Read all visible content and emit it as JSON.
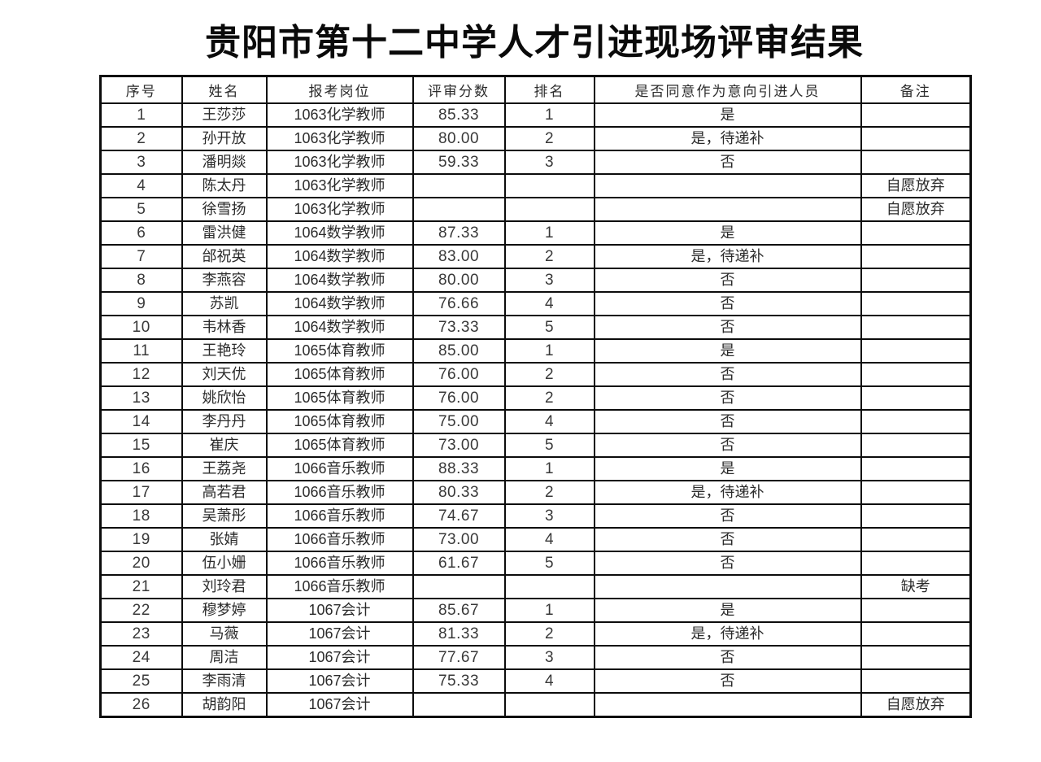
{
  "title": "贵阳市第十二中学人才引进现场评审结果",
  "colors": {
    "background": "#ffffff",
    "text": "#2b2b2b",
    "border": "#0c0c0c"
  },
  "table": {
    "headers": [
      "序号",
      "姓名",
      "报考岗位",
      "评审分数",
      "排名",
      "是否同意作为意向引进人员",
      "备注"
    ],
    "column_keys": [
      "no",
      "name",
      "position",
      "score",
      "rank",
      "agree",
      "remark"
    ],
    "rows": [
      [
        "1",
        "王莎莎",
        "1063化学教师",
        "85.33",
        "1",
        "是",
        ""
      ],
      [
        "2",
        "孙开放",
        "1063化学教师",
        "80.00",
        "2",
        "是，待递补",
        ""
      ],
      [
        "3",
        "潘明燚",
        "1063化学教师",
        "59.33",
        "3",
        "否",
        ""
      ],
      [
        "4",
        "陈太丹",
        "1063化学教师",
        "",
        "",
        "",
        "自愿放弃"
      ],
      [
        "5",
        "徐雪扬",
        "1063化学教师",
        "",
        "",
        "",
        "自愿放弃"
      ],
      [
        "6",
        "雷洪健",
        "1064数学教师",
        "87.33",
        "1",
        "是",
        ""
      ],
      [
        "7",
        "邰祝英",
        "1064数学教师",
        "83.00",
        "2",
        "是，待递补",
        ""
      ],
      [
        "8",
        "李燕容",
        "1064数学教师",
        "80.00",
        "3",
        "否",
        ""
      ],
      [
        "9",
        "苏凯",
        "1064数学教师",
        "76.66",
        "4",
        "否",
        ""
      ],
      [
        "10",
        "韦林香",
        "1064数学教师",
        "73.33",
        "5",
        "否",
        ""
      ],
      [
        "11",
        "王艳玲",
        "1065体育教师",
        "85.00",
        "1",
        "是",
        ""
      ],
      [
        "12",
        "刘天优",
        "1065体育教师",
        "76.00",
        "2",
        "否",
        ""
      ],
      [
        "13",
        "姚欣怡",
        "1065体育教师",
        "76.00",
        "2",
        "否",
        ""
      ],
      [
        "14",
        "李丹丹",
        "1065体育教师",
        "75.00",
        "4",
        "否",
        ""
      ],
      [
        "15",
        "崔庆",
        "1065体育教师",
        "73.00",
        "5",
        "否",
        ""
      ],
      [
        "16",
        "王荔尧",
        "1066音乐教师",
        "88.33",
        "1",
        "是",
        ""
      ],
      [
        "17",
        "高若君",
        "1066音乐教师",
        "80.33",
        "2",
        "是，待递补",
        ""
      ],
      [
        "18",
        "吴萧彤",
        "1066音乐教师",
        "74.67",
        "3",
        "否",
        ""
      ],
      [
        "19",
        "张婧",
        "1066音乐教师",
        "73.00",
        "4",
        "否",
        ""
      ],
      [
        "20",
        "伍小姗",
        "1066音乐教师",
        "61.67",
        "5",
        "否",
        ""
      ],
      [
        "21",
        "刘玲君",
        "1066音乐教师",
        "",
        "",
        "",
        "缺考"
      ],
      [
        "22",
        "穆梦婷",
        "1067会计",
        "85.67",
        "1",
        "是",
        ""
      ],
      [
        "23",
        "马薇",
        "1067会计",
        "81.33",
        "2",
        "是，待递补",
        ""
      ],
      [
        "24",
        "周洁",
        "1067会计",
        "77.67",
        "3",
        "否",
        ""
      ],
      [
        "25",
        "李雨清",
        "1067会计",
        "75.33",
        "4",
        "否",
        ""
      ],
      [
        "26",
        "胡韵阳",
        "1067会计",
        "",
        "",
        "",
        "自愿放弃"
      ]
    ]
  }
}
